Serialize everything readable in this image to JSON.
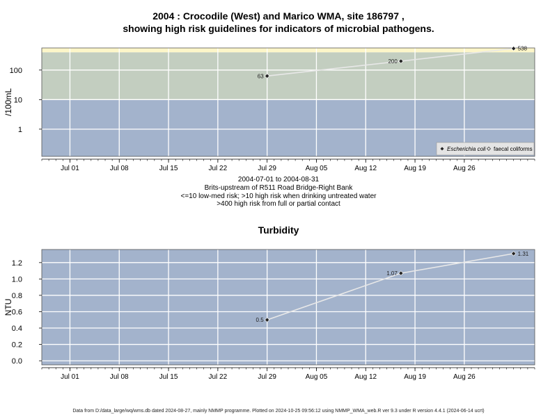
{
  "header": {
    "title_line1": "2004 : Crocodile (West) and Marico WMA, site 186797 ,",
    "title_line2": "showing high risk guidelines for indicators of microbial pathogens."
  },
  "subtitle": {
    "line1": "2004-07-01 to 2004-08-31",
    "line2": "Brits-upstream of R511 Road Bridge-Right Bank",
    "line3": "<=10 low-med risk; >10 high risk when drinking untreated water",
    "line4": ">400 high risk from full or partial contact"
  },
  "footer": {
    "text": "Data from D:/data_large/wq/wms.db dated 2024-08-27, mainly NMMP programme. Plotted on 2024-10-25 09:56:12 using NMMP_WMA_web.R ver 9.3 under R version 4.4.1 (2024-06-14 ucrt)"
  },
  "colors": {
    "low_risk_band": "#a3b3cc",
    "high_risk_band": "#c3cec0",
    "contact_risk_band": "#fdf6c9",
    "turbidity_bg": "#a3b3cc",
    "line": "#e8e8e8",
    "marker": "#222222"
  },
  "chart_data": [
    {
      "type": "line",
      "title": "",
      "ylabel": "/100mL",
      "y_scale": "log",
      "ylim": [
        0.12,
        560
      ],
      "y_ticks": [
        1,
        10,
        100
      ],
      "y_tick_labels": [
        "1",
        "10",
        "100"
      ],
      "xlim": [
        "2004-06-27",
        "2004-09-05"
      ],
      "x_ticks": [
        "2004-07-01",
        "2004-07-08",
        "2004-07-15",
        "2004-07-22",
        "2004-07-29",
        "2004-08-05",
        "2004-08-12",
        "2004-08-19",
        "2004-08-26"
      ],
      "x_tick_labels": [
        "Jul 01",
        "Jul 08",
        "Jul 15",
        "Jul 22",
        "Jul 29",
        "Aug 05",
        "Aug 12",
        "Aug 19",
        "Aug 26"
      ],
      "bands": [
        {
          "from": 0.12,
          "to": 10,
          "color": "#a3b3cc"
        },
        {
          "from": 10,
          "to": 400,
          "color": "#c3cec0"
        },
        {
          "from": 400,
          "to": 560,
          "color": "#fdf6c9"
        }
      ],
      "series": [
        {
          "name": "Escherichia coli",
          "marker": "filled-diamond",
          "x": [
            "2004-07-29",
            "2004-08-17",
            "2004-09-02"
          ],
          "y": [
            63,
            200,
            538
          ],
          "labels": [
            "63",
            "200",
            "538"
          ]
        }
      ],
      "legend": {
        "position": "bottom-right",
        "entries": [
          {
            "label": "Escherichia coli",
            "marker": "filled-diamond",
            "italic": true
          },
          {
            "label": "faecal coliforms",
            "marker": "open-diamond",
            "italic": false
          }
        ]
      },
      "grid": true
    },
    {
      "type": "line",
      "title": "Turbidity",
      "ylabel": "NTU",
      "y_scale": "linear",
      "ylim": [
        -0.05,
        1.36
      ],
      "y_ticks": [
        0.0,
        0.2,
        0.4,
        0.6,
        0.8,
        1.0,
        1.2
      ],
      "y_tick_labels": [
        "0.0",
        "0.2",
        "0.4",
        "0.6",
        "0.8",
        "1.0",
        "1.2"
      ],
      "xlim": [
        "2004-06-27",
        "2004-09-05"
      ],
      "x_ticks": [
        "2004-07-01",
        "2004-07-08",
        "2004-07-15",
        "2004-07-22",
        "2004-07-29",
        "2004-08-05",
        "2004-08-12",
        "2004-08-19",
        "2004-08-26"
      ],
      "x_tick_labels": [
        "Jul 01",
        "Jul 08",
        "Jul 15",
        "Jul 22",
        "Jul 29",
        "Aug 05",
        "Aug 12",
        "Aug 19",
        "Aug 26"
      ],
      "series": [
        {
          "name": "",
          "marker": "filled-diamond",
          "x": [
            "2004-07-29",
            "2004-08-17",
            "2004-09-02"
          ],
          "y": [
            0.5,
            1.07,
            1.31
          ],
          "labels": [
            "0.5",
            "1.07",
            "1.31"
          ]
        }
      ],
      "grid": true
    }
  ]
}
